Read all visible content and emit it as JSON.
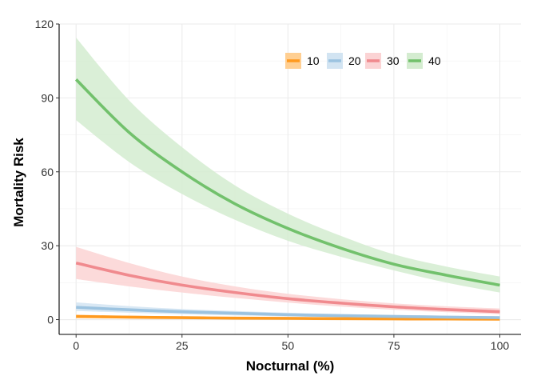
{
  "chart_data": {
    "type": "line",
    "xlabel": "Nocturnal (%)",
    "ylabel": "Mortality Risk",
    "xlim": [
      -4,
      105
    ],
    "ylim": [
      -6,
      120
    ],
    "x_ticks": [
      0,
      25,
      50,
      75,
      100
    ],
    "y_ticks": [
      0,
      30,
      60,
      90,
      120
    ],
    "grid": true,
    "legend": {
      "position": "top-right",
      "labels": [
        "10",
        "20",
        "30",
        "40"
      ]
    },
    "x": [
      0,
      12.5,
      25,
      37.5,
      50,
      62.5,
      75,
      87.5,
      100
    ],
    "series": [
      {
        "name": "10",
        "color": "#ff9a1f",
        "band_color": "#ffcf92",
        "values": [
          1.3,
          1.0,
          0.8,
          0.6,
          0.5,
          0.4,
          0.3,
          0.25,
          0.2
        ],
        "lower": [
          0.6,
          0.5,
          0.4,
          0.3,
          0.2,
          0.15,
          0.1,
          0.08,
          0.05
        ],
        "upper": [
          2.0,
          1.6,
          1.3,
          1.0,
          0.8,
          0.6,
          0.5,
          0.45,
          0.4
        ]
      },
      {
        "name": "20",
        "color": "#9cc3e0",
        "band_color": "#d2e4f2",
        "values": [
          5.0,
          4.0,
          3.2,
          2.6,
          2.0,
          1.6,
          1.3,
          1.0,
          0.8
        ],
        "lower": [
          3.5,
          2.8,
          2.2,
          1.7,
          1.3,
          1.0,
          0.8,
          0.6,
          0.4
        ],
        "upper": [
          7.0,
          5.5,
          4.3,
          3.5,
          2.8,
          2.3,
          1.9,
          1.6,
          1.3
        ]
      },
      {
        "name": "30",
        "color": "#f08a8e",
        "band_color": "#fbd3d4",
        "values": [
          23,
          18,
          14,
          11,
          8.5,
          6.7,
          5.2,
          4.1,
          3.2
        ],
        "lower": [
          16.5,
          13.5,
          11,
          8.8,
          6.9,
          5.3,
          4.0,
          3.0,
          2.2
        ],
        "upper": [
          29.5,
          23,
          17.5,
          13.5,
          10.5,
          8.3,
          6.6,
          5.4,
          4.5
        ]
      },
      {
        "name": "40",
        "color": "#72c16c",
        "band_color": "#d4ecd0",
        "values": [
          97.5,
          76,
          60,
          47,
          37,
          29,
          22.5,
          18,
          14
        ],
        "lower": [
          81,
          64,
          51,
          40.5,
          32,
          25.5,
          20,
          15,
          11
        ],
        "upper": [
          114.5,
          89,
          70,
          54.5,
          43,
          34,
          26.5,
          21.5,
          17.5
        ]
      }
    ]
  }
}
